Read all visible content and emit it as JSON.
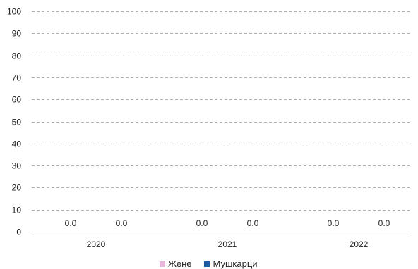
{
  "chart_data": {
    "type": "bar",
    "categories": [
      "2020",
      "2021",
      "2022"
    ],
    "series": [
      {
        "name": "Жене",
        "values": [
          0,
          0,
          0
        ],
        "labels": [
          "0.0",
          "0.0",
          "0.0"
        ],
        "color": "#e8b6dc"
      },
      {
        "name": "Мушкарци",
        "values": [
          0,
          0,
          0
        ],
        "labels": [
          "0.0",
          "0.0",
          "0.0"
        ],
        "color": "#1b5da5"
      }
    ],
    "ylim": [
      0,
      100
    ],
    "yticks": [
      0,
      10,
      20,
      30,
      40,
      50,
      60,
      70,
      80,
      90,
      100
    ],
    "grid": true,
    "legend": "bottom"
  }
}
